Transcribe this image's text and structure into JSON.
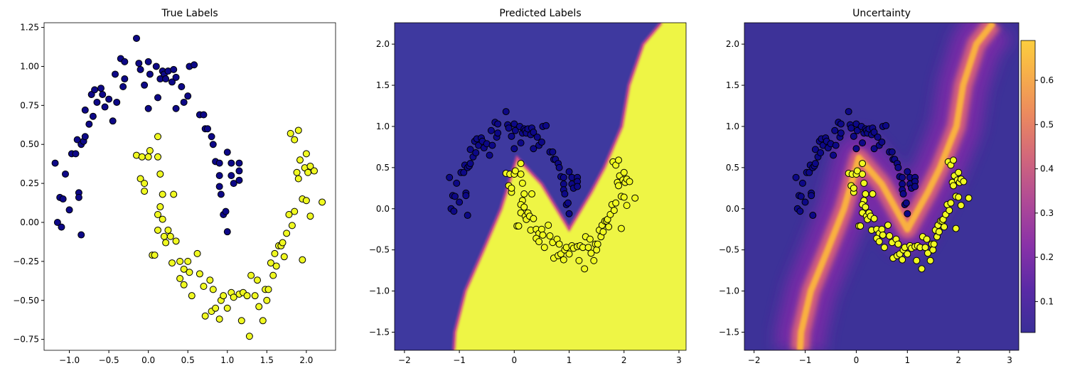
{
  "chart_data": [
    {
      "type": "scatter",
      "title": "True Labels",
      "xlim": [
        -1.32,
        2.37
      ],
      "ylim": [
        -0.82,
        1.28
      ],
      "xticks": [
        {
          "value": -1.0,
          "label": "−1.0"
        },
        {
          "value": -0.5,
          "label": "−0.5"
        },
        {
          "value": 0.0,
          "label": "0.0"
        },
        0.5,
        {
          "value": 1.0,
          "label": "1.0"
        },
        1.5,
        {
          "value": 2.0,
          "label": "2.0"
        }
      ],
      "yticks": [
        {
          "value": -0.75,
          "label": "−0.75"
        },
        {
          "value": -0.5,
          "label": "−0.50"
        },
        {
          "value": -0.25,
          "label": "−0.25"
        },
        {
          "value": 0.0,
          "label": "0.00"
        },
        0.25,
        {
          "value": 0.5,
          "label": "0.50"
        },
        0.75,
        {
          "value": 1.0,
          "label": "1.00"
        },
        1.25
      ],
      "series": [
        {
          "color": "#0d0887",
          "x": [
            -1.18,
            -1.15,
            -1.12,
            -1.1,
            -1.08,
            -1.05,
            -1.0,
            -0.97,
            -0.92,
            -0.9,
            -0.88,
            -0.88,
            -0.85,
            -0.85,
            -0.82,
            -0.8,
            -0.8,
            -0.75,
            -0.72,
            -0.7,
            -0.68,
            -0.65,
            -0.6,
            -0.58,
            -0.55,
            -0.5,
            -0.45,
            -0.42,
            -0.4,
            -0.35,
            -0.32,
            -0.3,
            -0.3,
            -0.15,
            -0.12,
            -0.1,
            -0.05,
            0.0,
            0.0,
            0.02,
            0.1,
            0.12,
            0.15,
            0.18,
            0.2,
            0.22,
            0.25,
            0.3,
            0.32,
            0.35,
            0.35,
            0.42,
            0.45,
            0.5,
            0.52,
            0.58,
            0.65,
            0.7,
            0.72,
            0.75,
            0.8,
            0.82,
            0.85,
            0.9,
            0.9,
            0.9,
            0.92,
            0.95,
            0.98,
            1.0,
            1.0,
            1.05,
            1.05,
            1.08,
            1.15,
            1.15,
            1.15
          ],
          "y": [
            0.38,
            0.0,
            0.16,
            -0.03,
            0.15,
            0.31,
            0.08,
            0.44,
            0.44,
            0.53,
            0.19,
            0.16,
            -0.08,
            0.5,
            0.52,
            0.55,
            0.72,
            0.63,
            0.82,
            0.68,
            0.85,
            0.77,
            0.86,
            0.82,
            0.74,
            0.79,
            0.65,
            0.95,
            0.77,
            1.05,
            0.87,
            1.03,
            0.92,
            1.18,
            1.02,
            0.98,
            0.88,
            0.73,
            1.03,
            0.95,
            1.0,
            0.8,
            0.92,
            0.97,
            0.95,
            0.92,
            0.97,
            0.9,
            0.98,
            0.93,
            0.73,
            0.87,
            0.77,
            0.81,
            1.0,
            1.01,
            0.69,
            0.69,
            0.6,
            0.6,
            0.55,
            0.5,
            0.39,
            0.38,
            0.3,
            0.23,
            0.18,
            0.05,
            0.07,
            -0.06,
            0.45,
            0.38,
            0.3,
            0.25,
            0.38,
            0.33,
            0.27
          ]
        },
        {
          "color": "#f0f921",
          "x": [
            -0.15,
            -0.1,
            -0.08,
            -0.05,
            -0.05,
            0.0,
            0.02,
            0.05,
            0.08,
            0.12,
            0.12,
            0.15,
            0.15,
            0.18,
            0.12,
            0.12,
            0.18,
            0.2,
            0.22,
            0.25,
            0.28,
            0.3,
            0.32,
            0.35,
            0.4,
            0.45,
            0.5,
            0.52,
            0.55,
            0.62,
            0.65,
            0.4,
            0.45,
            0.7,
            0.72,
            0.78,
            0.8,
            0.82,
            0.85,
            0.9,
            0.92,
            0.95,
            1.0,
            1.05,
            1.08,
            1.15,
            1.18,
            1.2,
            1.25,
            1.28,
            1.3,
            1.35,
            1.38,
            1.4,
            1.45,
            1.48,
            1.5,
            1.52,
            1.55,
            1.58,
            1.6,
            1.62,
            1.65,
            1.68,
            1.7,
            1.72,
            1.75,
            1.78,
            1.8,
            1.82,
            1.85,
            1.85,
            1.88,
            1.9,
            1.9,
            1.92,
            1.95,
            1.95,
            1.98,
            2.0,
            2.0,
            2.02,
            2.05,
            2.05,
            2.1,
            2.2
          ],
          "y": [
            0.43,
            0.28,
            0.42,
            0.2,
            0.25,
            0.42,
            0.46,
            -0.21,
            -0.21,
            0.55,
            0.42,
            0.31,
            0.1,
            0.18,
            0.05,
            -0.05,
            0.02,
            -0.09,
            -0.13,
            -0.05,
            -0.09,
            -0.26,
            0.18,
            -0.12,
            -0.25,
            -0.3,
            -0.25,
            -0.32,
            -0.47,
            -0.2,
            -0.33,
            -0.36,
            -0.4,
            -0.41,
            -0.6,
            -0.37,
            -0.57,
            -0.43,
            -0.55,
            -0.62,
            -0.5,
            -0.47,
            -0.55,
            -0.45,
            -0.48,
            -0.46,
            -0.63,
            -0.45,
            -0.47,
            -0.73,
            -0.34,
            -0.47,
            -0.37,
            -0.54,
            -0.63,
            -0.43,
            -0.5,
            -0.43,
            -0.26,
            -0.34,
            -0.2,
            -0.28,
            -0.15,
            -0.15,
            -0.13,
            -0.22,
            -0.07,
            0.05,
            0.57,
            -0.02,
            0.07,
            0.53,
            0.32,
            0.28,
            0.59,
            0.4,
            0.15,
            -0.24,
            0.35,
            0.14,
            0.44,
            0.32,
            0.36,
            0.04,
            0.33,
            0.13
          ]
        }
      ]
    },
    {
      "type": "decision",
      "title": "Predicted Labels",
      "xlim": [
        -2.18,
        3.13
      ],
      "ylim": [
        -1.72,
        2.26
      ],
      "xticks": [
        {
          "value": -2,
          "label": "−2"
        },
        {
          "value": -1,
          "label": "−1"
        },
        0,
        1,
        2,
        3
      ],
      "yticks": [
        {
          "value": -1.5,
          "label": "−1.5"
        },
        {
          "value": -1.0,
          "label": "−1.0"
        },
        {
          "value": -0.5,
          "label": "−0.5"
        },
        {
          "value": 0.0,
          "label": "0.0"
        },
        0.5,
        {
          "value": 1.0,
          "label": "1.0"
        },
        1.5,
        {
          "value": 2.0,
          "label": "2.0"
        }
      ],
      "colors": [
        "#3e399f",
        "#eef545"
      ],
      "boundary": {
        "x": [
          -1.1,
          -1.08,
          -0.89,
          -0.56,
          -0.24,
          0.05,
          0.5,
          1.0,
          1.4,
          1.64,
          1.96,
          2.09,
          2.35,
          2.68
        ],
        "y": [
          -1.72,
          -1.5,
          -1.0,
          -0.5,
          0.0,
          0.62,
          0.3,
          -0.25,
          0.2,
          0.5,
          1.0,
          1.5,
          2.0,
          2.26
        ]
      }
    },
    {
      "type": "heatmap",
      "title": "Uncertainty",
      "xlim": [
        -2.19,
        3.18
      ],
      "ylim": [
        -1.72,
        2.26
      ],
      "xticks": [
        {
          "value": -2,
          "label": "−2"
        },
        {
          "value": -1,
          "label": "−1"
        },
        0,
        1,
        2,
        3
      ],
      "yticks": [
        {
          "value": -1.5,
          "label": "−1.5"
        },
        {
          "value": -1.0,
          "label": "−1.0"
        },
        {
          "value": -0.5,
          "label": "−0.5"
        },
        {
          "value": 0.0,
          "label": "0.0"
        },
        0.5,
        {
          "value": 1.0,
          "label": "1.0"
        },
        1.5,
        {
          "value": 2.0,
          "label": "2.0"
        }
      ],
      "colormap": "plasma",
      "clim": [
        0.03,
        0.69
      ],
      "cticks": [
        0.1,
        0.2,
        0.3,
        0.4,
        0.5,
        0.6
      ]
    }
  ]
}
